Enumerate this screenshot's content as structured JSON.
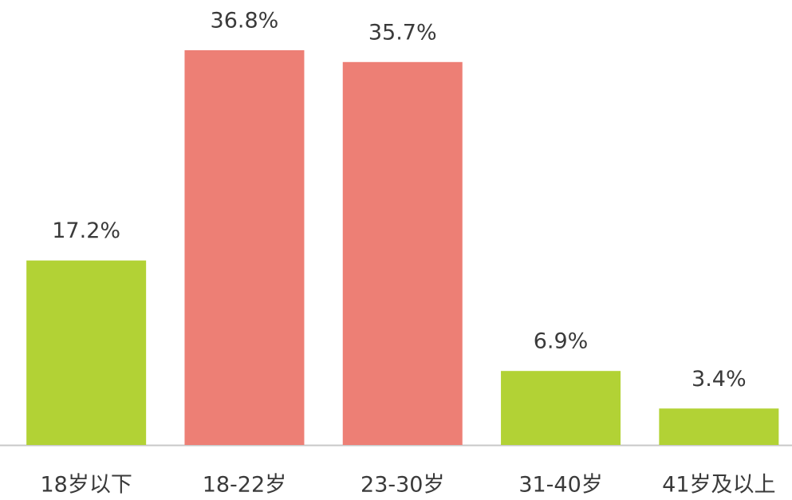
{
  "chart_data": {
    "type": "bar",
    "categories": [
      "18岁以下",
      "18-22岁",
      "23-30岁",
      "31-40岁",
      "41岁及以上"
    ],
    "values": [
      17.2,
      36.8,
      35.7,
      6.9,
      3.4
    ],
    "value_labels": [
      "17.2%",
      "36.8%",
      "35.7%",
      "6.9%",
      "3.4%"
    ],
    "colors": [
      "#b2d235",
      "#ed7f75",
      "#ed7f75",
      "#b2d235",
      "#b2d235"
    ]
  }
}
